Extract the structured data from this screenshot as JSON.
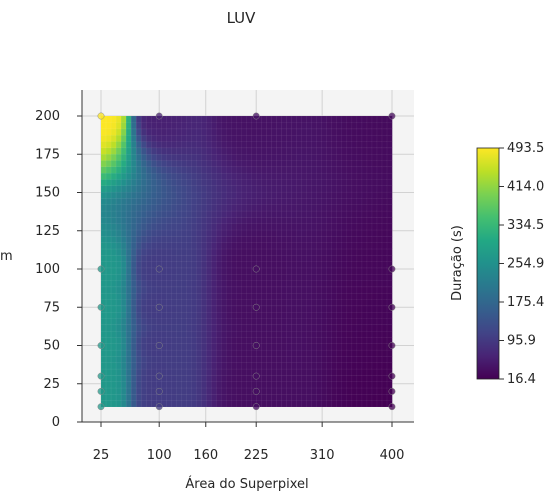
{
  "chart_data": {
    "type": "heatmap",
    "title": "LUV",
    "xlabel": "Área do Superpixel",
    "ylabel": "m",
    "colorbar_label": "Duração (s)",
    "colormap": "viridis",
    "xlim": [
      25,
      400
    ],
    "ylim": [
      10,
      200
    ],
    "x_ticks": [
      25,
      100,
      160,
      225,
      310,
      400
    ],
    "y_ticks": [
      0,
      25,
      50,
      75,
      100,
      125,
      150,
      175,
      200
    ],
    "cbar_ticks": [
      "493.5",
      "414.0",
      "334.5",
      "254.9",
      "175.4",
      "95.9",
      "16.4"
    ],
    "cbar_range": [
      16.4,
      493.5
    ],
    "sample_points": [
      {
        "x": 25,
        "y": 200,
        "value": 493.5
      },
      {
        "x": 25,
        "y": 100,
        "value": 270
      },
      {
        "x": 25,
        "y": 75,
        "value": 270
      },
      {
        "x": 25,
        "y": 50,
        "value": 270
      },
      {
        "x": 25,
        "y": 30,
        "value": 270
      },
      {
        "x": 25,
        "y": 20,
        "value": 270
      },
      {
        "x": 25,
        "y": 10,
        "value": 270
      },
      {
        "x": 100,
        "y": 200,
        "value": 60
      },
      {
        "x": 100,
        "y": 100,
        "value": 100
      },
      {
        "x": 100,
        "y": 75,
        "value": 100
      },
      {
        "x": 100,
        "y": 50,
        "value": 100
      },
      {
        "x": 100,
        "y": 30,
        "value": 100
      },
      {
        "x": 100,
        "y": 20,
        "value": 100
      },
      {
        "x": 100,
        "y": 10,
        "value": 100
      },
      {
        "x": 225,
        "y": 200,
        "value": 40
      },
      {
        "x": 225,
        "y": 100,
        "value": 35
      },
      {
        "x": 225,
        "y": 75,
        "value": 35
      },
      {
        "x": 225,
        "y": 50,
        "value": 35
      },
      {
        "x": 225,
        "y": 30,
        "value": 35
      },
      {
        "x": 225,
        "y": 20,
        "value": 35
      },
      {
        "x": 225,
        "y": 10,
        "value": 35
      },
      {
        "x": 400,
        "y": 200,
        "value": 30
      },
      {
        "x": 400,
        "y": 100,
        "value": 25
      },
      {
        "x": 400,
        "y": 75,
        "value": 22
      },
      {
        "x": 400,
        "y": 50,
        "value": 20
      },
      {
        "x": 400,
        "y": 30,
        "value": 18
      },
      {
        "x": 400,
        "y": 20,
        "value": 17
      },
      {
        "x": 400,
        "y": 10,
        "value": 16.4
      }
    ]
  }
}
